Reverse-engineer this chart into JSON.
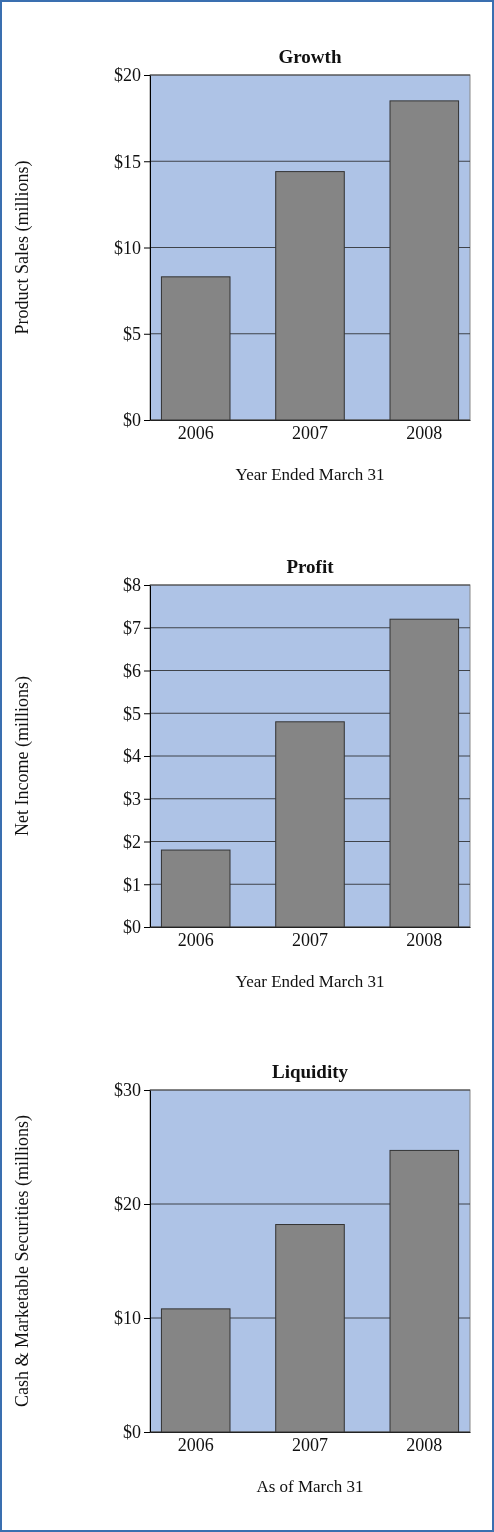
{
  "chart_data": [
    {
      "type": "bar",
      "title": "Growth",
      "xlabel": "Year Ended March 31",
      "ylabel": "Product Sales (millions)",
      "categories": [
        "2006",
        "2007",
        "2008"
      ],
      "values": [
        8.3,
        14.4,
        18.5
      ],
      "color": "#858585",
      "ylim": [
        0,
        20
      ],
      "yticks": [
        {
          "value": 0,
          "label": "$0"
        },
        {
          "value": 5,
          "label": "$5"
        },
        {
          "value": 10,
          "label": "$10"
        },
        {
          "value": 15,
          "label": "$15"
        },
        {
          "value": 20,
          "label": "$20"
        }
      ],
      "grid": "y"
    },
    {
      "type": "bar",
      "title": "Profit",
      "xlabel": "Year Ended March 31",
      "ylabel": "Net Income (millions)",
      "categories": [
        "2006",
        "2007",
        "2008"
      ],
      "values": [
        1.8,
        4.8,
        7.2
      ],
      "color": "#858585",
      "ylim": [
        0,
        8
      ],
      "yticks": [
        {
          "value": 0,
          "label": "$0"
        },
        {
          "value": 1,
          "label": "$1"
        },
        {
          "value": 2,
          "label": "$2"
        },
        {
          "value": 3,
          "label": "$3"
        },
        {
          "value": 4,
          "label": "$4"
        },
        {
          "value": 5,
          "label": "$5"
        },
        {
          "value": 6,
          "label": "$6"
        },
        {
          "value": 7,
          "label": "$7"
        },
        {
          "value": 8,
          "label": "$8"
        }
      ],
      "grid": "y"
    },
    {
      "type": "bar",
      "title": "Liquidity",
      "xlabel": "As of March 31",
      "ylabel": "Cash & Marketable Securities (millions)",
      "categories": [
        "2006",
        "2007",
        "2008"
      ],
      "values": [
        10.8,
        18.2,
        24.7
      ],
      "color": "#858585",
      "ylim": [
        0,
        30
      ],
      "yticks": [
        {
          "value": 0,
          "label": "$0"
        },
        {
          "value": 10,
          "label": "$10"
        },
        {
          "value": 20,
          "label": "$20"
        },
        {
          "value": 30,
          "label": "$30"
        }
      ],
      "grid": "y"
    }
  ]
}
